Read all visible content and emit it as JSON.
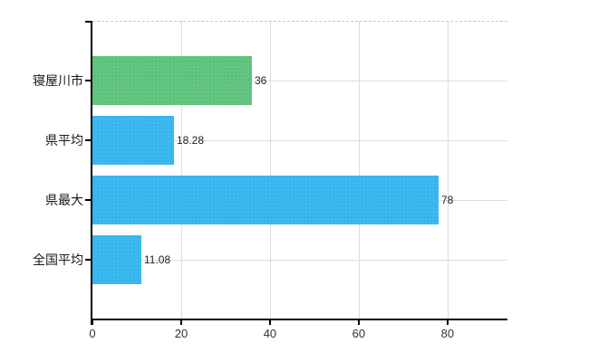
{
  "chart_data": {
    "type": "bar",
    "orientation": "horizontal",
    "title": "",
    "xlabel": "",
    "ylabel": "",
    "categories": [
      "寝屋川市",
      "県平均",
      "県最大",
      "全国平均"
    ],
    "values": [
      36,
      18.28,
      78,
      11.08
    ],
    "value_labels": [
      "36",
      "18.28",
      "78",
      "11.08"
    ],
    "bar_colors": [
      "#62c77e",
      "#3abaf0",
      "#3abaf0",
      "#3abaf0"
    ],
    "x_ticks": [
      0,
      20,
      40,
      60,
      80
    ],
    "x_tick_labels": [
      "0",
      "20",
      "40",
      "60",
      "80"
    ],
    "xlim": [
      0,
      93.5
    ],
    "grid": true,
    "legend": "none",
    "colors": {
      "grid": "#dcdcdc",
      "axis": "#000000",
      "top_border": "#c8c8c8",
      "category_text": "#1a1a1a",
      "tick_text": "#333333",
      "value_text": "#222222",
      "background": "#ffffff"
    }
  }
}
